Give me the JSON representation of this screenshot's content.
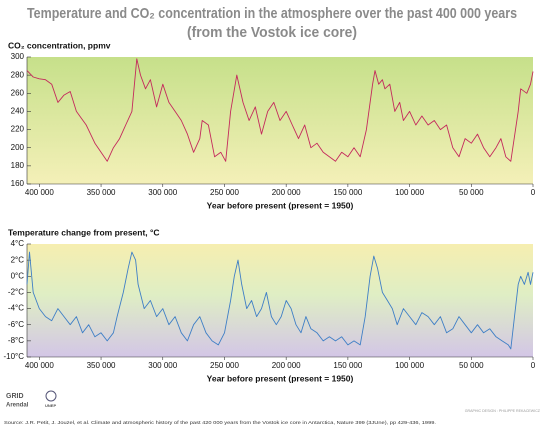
{
  "title": [
    "Temperature and CO₂ concentration in the atmosphere over the past 400 000 years",
    "(from the Vostok ice core)"
  ],
  "source": "Source: J.R. Petit, J. Jouzel, et al. Climate and atmospheric history of the past 420 000 years from the Vostok ice core in Antarctica, Nature 399 (3JUne), pp 429-436, 1999.",
  "credit": "GRAPHIC DESIGN : PHILIPPE REKACEWICZ",
  "logos": [
    "GRID",
    "Arendal",
    "UNEP"
  ],
  "chart_data": [
    {
      "type": "line",
      "y_label": "CO₂ concentration, ppmv",
      "x_label": "Year before present (present = 1950)",
      "color": "#c42a5c",
      "xlim": [
        410000,
        0
      ],
      "ylim": [
        160,
        300
      ],
      "xticks": [
        {
          "value": 400000,
          "label": "400 000"
        },
        {
          "value": 350000,
          "label": "350 000"
        },
        {
          "value": 300000,
          "label": "300 000"
        },
        {
          "value": 250000,
          "label": "250 000"
        },
        {
          "value": 200000,
          "label": "200 000"
        },
        {
          "value": 150000,
          "label": "150 000"
        },
        {
          "value": 100000,
          "label": "100 000"
        },
        {
          "value": 50000,
          "label": "50 000"
        },
        0
      ],
      "yticks": [
        160,
        180,
        200,
        220,
        240,
        260,
        280,
        300
      ],
      "x": [
        410000,
        405000,
        400000,
        395000,
        390000,
        385000,
        380000,
        375000,
        370000,
        362000,
        355000,
        345000,
        340000,
        335000,
        330000,
        325000,
        321000,
        318000,
        314000,
        310000,
        305000,
        300000,
        295000,
        290000,
        285000,
        280000,
        275000,
        270000,
        268000,
        263000,
        258000,
        253000,
        249000,
        245000,
        240000,
        235000,
        230000,
        225000,
        220000,
        215000,
        210000,
        205000,
        200000,
        195000,
        190000,
        185000,
        180000,
        175000,
        170000,
        160000,
        155000,
        150000,
        145000,
        140000,
        135000,
        130000,
        128000,
        125000,
        122000,
        120000,
        116000,
        112000,
        108000,
        105000,
        100000,
        95000,
        90000,
        85000,
        80000,
        75000,
        70000,
        65000,
        60000,
        55000,
        50000,
        45000,
        40000,
        35000,
        30000,
        26000,
        22000,
        18000,
        12000,
        10000,
        5000,
        2000,
        0
      ],
      "values": [
        285,
        278,
        276,
        275,
        270,
        250,
        258,
        262,
        240,
        225,
        205,
        185,
        200,
        210,
        225,
        240,
        298,
        280,
        265,
        275,
        245,
        270,
        250,
        240,
        230,
        215,
        195,
        210,
        230,
        225,
        190,
        195,
        185,
        240,
        280,
        250,
        230,
        245,
        215,
        240,
        250,
        230,
        240,
        225,
        210,
        225,
        200,
        205,
        195,
        185,
        195,
        190,
        200,
        190,
        220,
        270,
        285,
        270,
        275,
        265,
        270,
        240,
        250,
        230,
        240,
        225,
        235,
        225,
        230,
        220,
        225,
        200,
        190,
        210,
        205,
        215,
        200,
        190,
        200,
        210,
        190,
        185,
        240,
        265,
        260,
        270,
        284
      ]
    },
    {
      "type": "line",
      "y_label": "Temperature change from present, °C",
      "x_label": "Year before present (present = 1950)",
      "color": "#3f7fc6",
      "xlim": [
        410000,
        0
      ],
      "ylim": [
        -10,
        4
      ],
      "xticks": [
        {
          "value": 400000,
          "label": "400 000"
        },
        {
          "value": 350000,
          "label": "350 000"
        },
        {
          "value": 300000,
          "label": "300 000"
        },
        {
          "value": 250000,
          "label": "250 000"
        },
        {
          "value": 200000,
          "label": "200 000"
        },
        {
          "value": 150000,
          "label": "150 000"
        },
        {
          "value": 100000,
          "label": "100 000"
        },
        {
          "value": 50000,
          "label": "50 000"
        },
        0
      ],
      "yticks": [
        {
          "value": 4,
          "label": "4°C"
        },
        {
          "value": 2,
          "label": "2°C"
        },
        {
          "value": 0,
          "label": "0°C"
        },
        {
          "value": -2,
          "label": "-2°C"
        },
        {
          "value": -4,
          "label": "-4°C"
        },
        {
          "value": -6,
          "label": "-6°C"
        },
        {
          "value": -8,
          "label": "-8°C"
        },
        {
          "value": -10,
          "label": "-10°C"
        }
      ],
      "x": [
        410000,
        408000,
        405000,
        400000,
        395000,
        390000,
        385000,
        380000,
        375000,
        370000,
        365000,
        360000,
        355000,
        350000,
        345000,
        340000,
        337000,
        332000,
        328000,
        325000,
        322000,
        320000,
        315000,
        310000,
        305000,
        300000,
        295000,
        290000,
        285000,
        280000,
        275000,
        270000,
        265000,
        260000,
        255000,
        250000,
        245000,
        242000,
        239000,
        236000,
        232000,
        228000,
        224000,
        220000,
        216000,
        212000,
        208000,
        204000,
        200000,
        196000,
        192000,
        188000,
        184000,
        180000,
        175000,
        170000,
        165000,
        160000,
        155000,
        150000,
        145000,
        140000,
        136000,
        132000,
        129000,
        126000,
        122000,
        118000,
        114000,
        110000,
        105000,
        100000,
        95000,
        90000,
        85000,
        80000,
        75000,
        70000,
        65000,
        60000,
        55000,
        50000,
        45000,
        40000,
        35000,
        30000,
        25000,
        20000,
        18000,
        15000,
        12000,
        10000,
        7000,
        4000,
        2000,
        0
      ],
      "values": [
        -1,
        3,
        -2,
        -4,
        -5,
        -5.5,
        -4,
        -5,
        -6,
        -5,
        -7,
        -6,
        -7.5,
        -7,
        -8,
        -7,
        -5,
        -2,
        1,
        3,
        2,
        -1,
        -4,
        -3,
        -5,
        -4,
        -6,
        -5,
        -7,
        -8,
        -6,
        -5,
        -7,
        -8,
        -8.5,
        -7,
        -3,
        0,
        2,
        -1,
        -4,
        -3,
        -5,
        -4,
        -2,
        -5,
        -6,
        -5,
        -3,
        -4,
        -6,
        -7,
        -5,
        -6.5,
        -7,
        -8,
        -7.5,
        -8,
        -7.5,
        -8.5,
        -8,
        -8.5,
        -5,
        0,
        2.5,
        1,
        -2,
        -3,
        -4,
        -6,
        -4,
        -5,
        -6,
        -4.5,
        -5,
        -6,
        -5,
        -7,
        -6.5,
        -5,
        -6,
        -7,
        -6,
        -7,
        -6.5,
        -7.5,
        -8,
        -8.5,
        -9,
        -5,
        -1,
        0,
        -1,
        0.5,
        -1,
        0.5
      ]
    }
  ]
}
